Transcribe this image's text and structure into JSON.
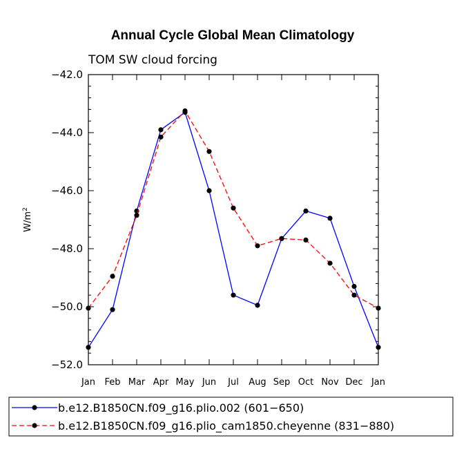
{
  "chart_data": {
    "type": "line",
    "title": "Annual Cycle Global Mean Climatology",
    "subtitle": "TOM SW cloud forcing",
    "ylabel_base": "W/m",
    "ylabel_sup": "2",
    "xlabel": "",
    "ylim": [
      -52.0,
      -42.0
    ],
    "ymajor_ticks": [
      -42.0,
      -44.0,
      -46.0,
      -48.0,
      -50.0,
      -52.0
    ],
    "ytick_labels": [
      "−42.0",
      "−44.0",
      "−46.0",
      "−48.0",
      "−50.0",
      "−52.0"
    ],
    "yminor_step": 0.4,
    "categories": [
      "Jan",
      "Feb",
      "Mar",
      "Apr",
      "May",
      "Jun",
      "Jul",
      "Aug",
      "Sep",
      "Oct",
      "Nov",
      "Dec",
      "Jan"
    ],
    "grid": false,
    "legend_position": "bottom",
    "series": [
      {
        "name": "b.e12.B1850CN.f09_g16.plio.002 (601−650)",
        "color": "#0000ff",
        "dash": "solid",
        "values": [
          -51.4,
          -50.1,
          -46.7,
          -43.9,
          -43.3,
          -46.0,
          -49.6,
          -49.95,
          -47.65,
          -46.7,
          -46.95,
          -49.3,
          -51.4
        ]
      },
      {
        "name": "b.e12.B1850CN.f09_g16.plio_cam1850.cheyenne (831−880)",
        "color": "#ff0000",
        "dash": "dashed",
        "values": [
          -50.05,
          -48.95,
          -46.85,
          -44.15,
          -43.25,
          -44.65,
          -46.6,
          -47.9,
          -47.65,
          -47.7,
          -48.5,
          -49.6,
          -50.05
        ]
      }
    ]
  }
}
